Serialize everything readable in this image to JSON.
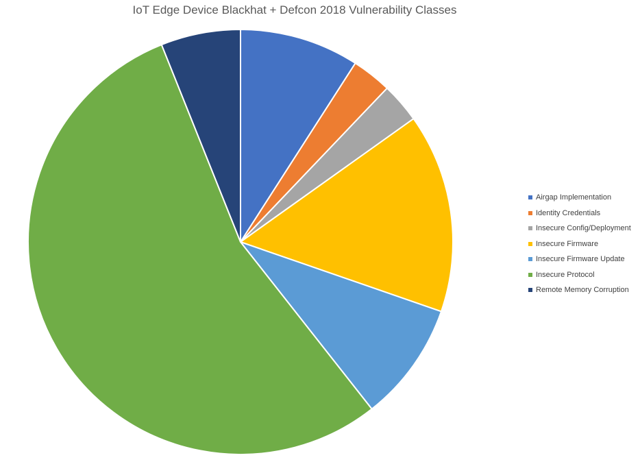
{
  "chart_data": {
    "type": "pie",
    "title": "IoT Edge Device Blackhat + Defcon 2018 Vulnerability Classes",
    "categories": [
      "Airgap Implementation",
      "Identity Credentials",
      "Insecure Config/Deployment",
      "Insecure Firmware",
      "Insecure Firmware Update",
      "Insecure Protocol",
      "Remote Memory Corruption"
    ],
    "values": [
      3,
      1,
      1,
      5,
      3,
      18,
      2
    ],
    "colors": [
      "#4472C4",
      "#ED7D31",
      "#A5A5A5",
      "#FFC000",
      "#5B9BD5",
      "#70AD47",
      "#264478"
    ],
    "start_angle": "12 o'clock, clockwise",
    "legend_position": "right"
  }
}
